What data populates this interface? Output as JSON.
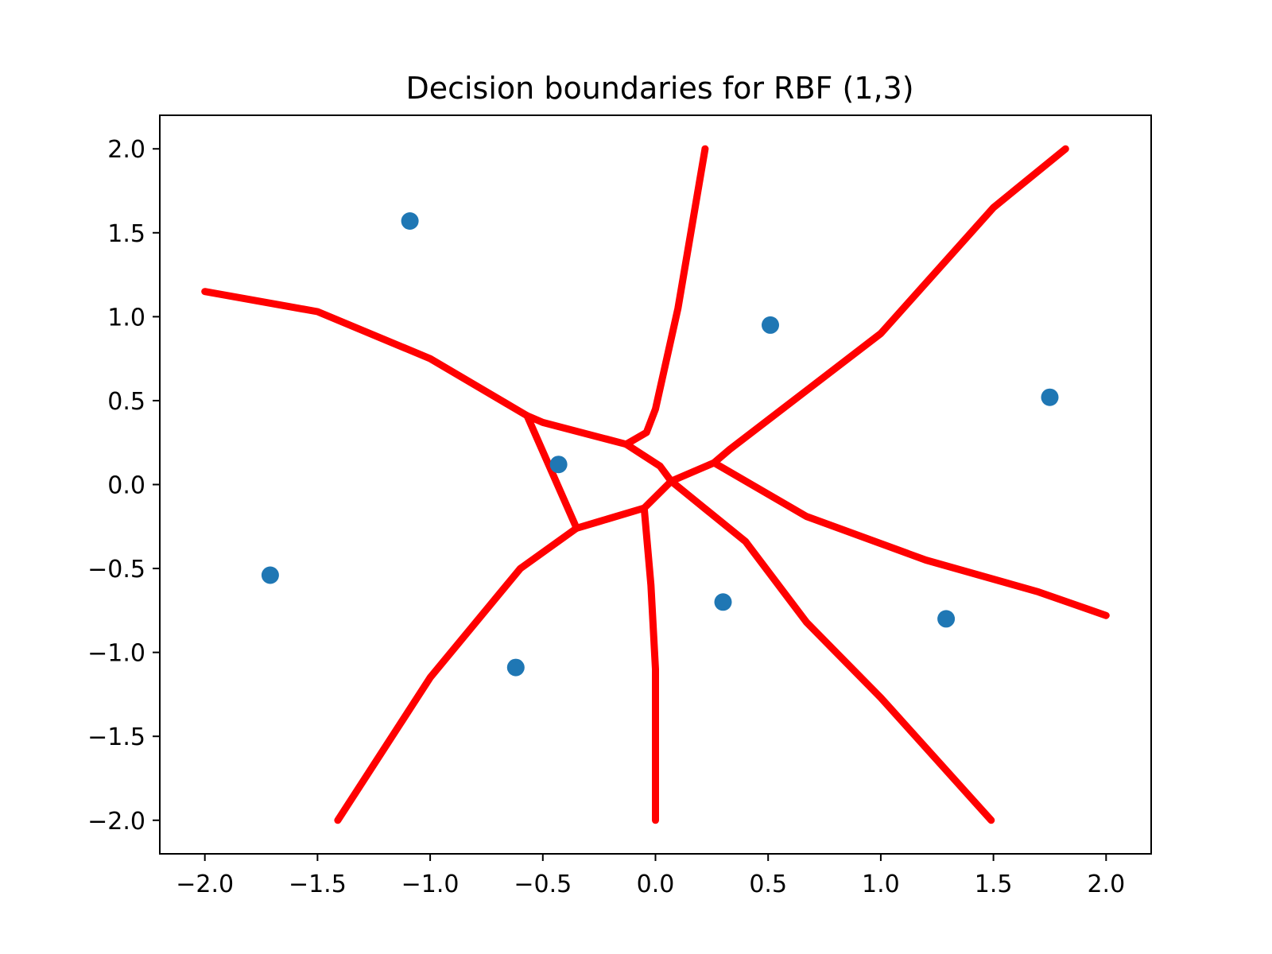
{
  "chart_data": {
    "type": "scatter",
    "title": "Decision boundaries for RBF (1,3)",
    "xlabel": "",
    "ylabel": "",
    "xlim": [
      -2.2,
      2.2
    ],
    "ylim": [
      -2.2,
      2.2
    ],
    "xticks": [
      -2.0,
      -1.5,
      -1.0,
      -0.5,
      0.0,
      0.5,
      1.0,
      1.5,
      2.0
    ],
    "yticks": [
      -2.0,
      -1.5,
      -1.0,
      -0.5,
      0.0,
      0.5,
      1.0,
      1.5,
      2.0
    ],
    "xtick_labels": [
      "−2.0",
      "−1.5",
      "−1.0",
      "−0.5",
      "0.0",
      "0.5",
      "1.0",
      "1.5",
      "2.0"
    ],
    "ytick_labels": [
      "−2.0",
      "−1.5",
      "−1.0",
      "−0.5",
      "0.0",
      "0.5",
      "1.0",
      "1.5",
      "2.0"
    ],
    "grid": false,
    "points": {
      "color": "#1f77b4",
      "x": [
        -1.09,
        0.51,
        1.75,
        -0.43,
        -1.71,
        -0.62,
        0.3,
        1.29
      ],
      "y": [
        1.57,
        0.95,
        0.52,
        0.12,
        -0.54,
        -1.09,
        -0.7,
        -0.8
      ]
    },
    "boundaries": {
      "color": "#ff0000",
      "segments": [
        [
          [
            -2.0,
            1.15
          ],
          [
            -1.5,
            1.03
          ],
          [
            -1.0,
            0.75
          ],
          [
            -0.57,
            0.41
          ]
        ],
        [
          [
            -0.57,
            0.41
          ],
          [
            -0.5,
            0.37
          ],
          [
            -0.13,
            0.24
          ]
        ],
        [
          [
            -0.57,
            0.41
          ],
          [
            -0.35,
            -0.26
          ]
        ],
        [
          [
            -0.13,
            0.24
          ],
          [
            -0.04,
            0.31
          ],
          [
            0.0,
            0.45
          ],
          [
            0.1,
            1.05
          ],
          [
            0.22,
            2.0
          ]
        ],
        [
          [
            -0.13,
            0.24
          ],
          [
            0.02,
            0.11
          ],
          [
            0.07,
            0.02
          ]
        ],
        [
          [
            -0.35,
            -0.26
          ],
          [
            -0.25,
            -0.22
          ],
          [
            -0.05,
            -0.14
          ],
          [
            0.07,
            0.02
          ]
        ],
        [
          [
            0.07,
            0.02
          ],
          [
            0.26,
            0.13
          ]
        ],
        [
          [
            0.26,
            0.13
          ],
          [
            0.33,
            0.21
          ],
          [
            1.0,
            0.9
          ],
          [
            1.5,
            1.65
          ],
          [
            1.82,
            2.0
          ]
        ],
        [
          [
            0.26,
            0.13
          ],
          [
            0.67,
            -0.19
          ],
          [
            1.2,
            -0.45
          ],
          [
            1.7,
            -0.64
          ],
          [
            2.0,
            -0.78
          ]
        ],
        [
          [
            0.07,
            0.02
          ],
          [
            0.4,
            -0.34
          ],
          [
            0.67,
            -0.82
          ],
          [
            1.0,
            -1.27
          ],
          [
            1.49,
            -2.0
          ]
        ],
        [
          [
            -0.05,
            -0.14
          ],
          [
            -0.02,
            -0.6
          ],
          [
            0.0,
            -1.1
          ],
          [
            0.0,
            -2.0
          ]
        ],
        [
          [
            -0.35,
            -0.26
          ],
          [
            -0.6,
            -0.5
          ],
          [
            -1.0,
            -1.15
          ],
          [
            -1.41,
            -2.0
          ]
        ]
      ]
    }
  }
}
